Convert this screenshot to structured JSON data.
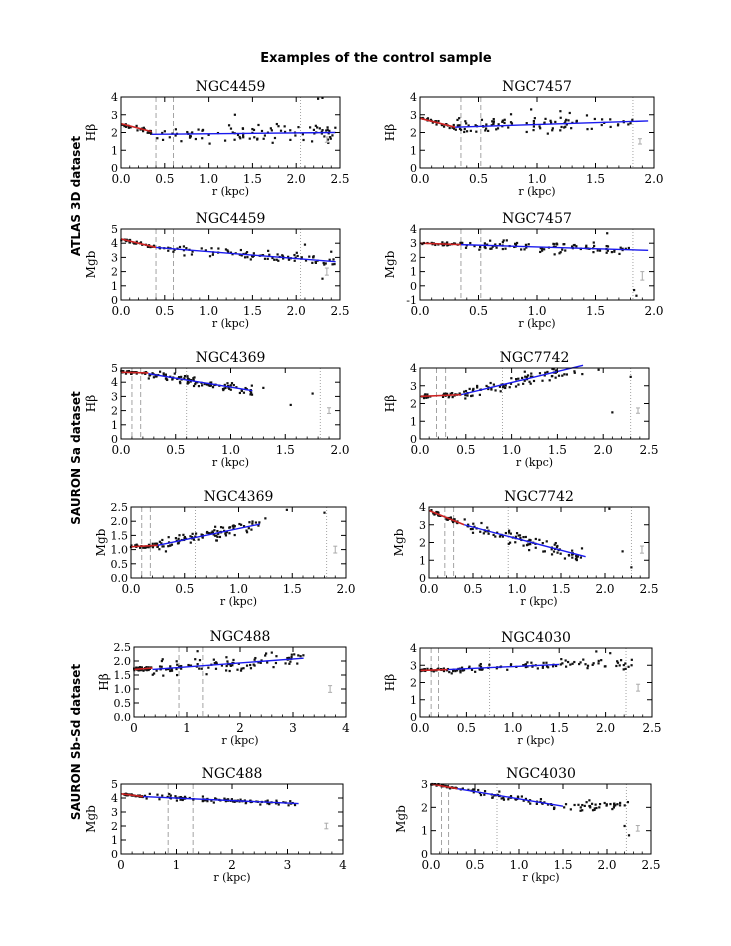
{
  "figure": {
    "title": "Examples of the control sample",
    "group_labels": [
      "ATLAS 3D dataset",
      "SAURON Sa dataset",
      "SAURON Sb-Sd dataset"
    ]
  },
  "colors": {
    "inner_fit": "#cc2222",
    "outer_fit": "#1a1aee",
    "points": "#111111",
    "error_bar": "#aaaaaa",
    "marker_line": "#999999"
  },
  "chart_data": [
    {
      "type": "scatter",
      "title": "NGC4459",
      "ylabel": "Hβ",
      "xlabel": "r (kpc)",
      "xlim": [
        0,
        2.5
      ],
      "ylim": [
        0,
        4
      ],
      "xticks": [
        "0.0",
        "0.5",
        "1.0",
        "1.5",
        "2.0",
        "2.5"
      ],
      "yticks": [
        "0",
        "1",
        "2",
        "3",
        "4"
      ],
      "dashed_x": [
        0.4,
        0.6
      ],
      "dotted_x": [
        2.05
      ],
      "inner_fit": [
        [
          0,
          2.5
        ],
        [
          0.35,
          2.05
        ]
      ],
      "outer_fit": [
        [
          0.35,
          1.9
        ],
        [
          2.45,
          2.0
        ]
      ],
      "outer_end": 2.45,
      "scatter_sd": 0.35,
      "errorbar": {
        "x": 2.35,
        "y": 1.6,
        "half": 0.15
      },
      "outliers": [
        [
          2.25,
          3.9
        ],
        [
          2.3,
          3.95
        ],
        [
          1.3,
          3.0
        ]
      ]
    },
    {
      "type": "scatter",
      "title": "NGC7457",
      "ylabel": "Hβ",
      "xlabel": "r (kpc)",
      "xlim": [
        0,
        2.0
      ],
      "ylim": [
        0,
        4
      ],
      "xticks": [
        "0.0",
        "0.5",
        "1.0",
        "1.5",
        "2.0"
      ],
      "yticks": [
        "0",
        "1",
        "2",
        "3",
        "4"
      ],
      "dashed_x": [
        0.35,
        0.52
      ],
      "dotted_x": [
        1.82
      ],
      "inner_fit": [
        [
          0,
          2.8
        ],
        [
          0.3,
          2.3
        ]
      ],
      "outer_fit": [
        [
          0.3,
          2.3
        ],
        [
          1.95,
          2.65
        ]
      ],
      "outer_end": 1.82,
      "scatter_sd": 0.35,
      "errorbar": {
        "x": 1.88,
        "y": 1.5,
        "half": 0.15
      },
      "outliers": [
        [
          1.2,
          3.2
        ],
        [
          1.28,
          3.1
        ],
        [
          0.95,
          3.3
        ]
      ]
    },
    {
      "type": "scatter",
      "title": "NGC4459",
      "ylabel": "Mgb",
      "xlabel": "r (kpc)",
      "xlim": [
        0,
        2.5
      ],
      "ylim": [
        0,
        5
      ],
      "xticks": [
        "0.0",
        "0.5",
        "1.0",
        "1.5",
        "2.0",
        "2.5"
      ],
      "yticks": [
        "0",
        "1",
        "2",
        "3",
        "4",
        "5"
      ],
      "dashed_x": [
        0.4,
        0.6
      ],
      "dotted_x": [
        2.05
      ],
      "inner_fit": [
        [
          0,
          4.3
        ],
        [
          0.4,
          3.7
        ]
      ],
      "outer_fit": [
        [
          0.4,
          3.7
        ],
        [
          2.45,
          2.7
        ]
      ],
      "outer_end": 2.45,
      "scatter_sd": 0.25,
      "errorbar": {
        "x": 2.35,
        "y": 2.0,
        "half": 0.25
      },
      "outliers": [
        [
          2.3,
          1.5
        ],
        [
          2.1,
          3.9
        ],
        [
          2.4,
          3.4
        ]
      ]
    },
    {
      "type": "scatter",
      "title": "NGC7457",
      "ylabel": "Mgb",
      "xlabel": "r (kpc)",
      "xlim": [
        0,
        2.0
      ],
      "ylim": [
        -1,
        4
      ],
      "xticks": [
        "0.0",
        "0.5",
        "1.0",
        "1.5",
        "2.0"
      ],
      "yticks": [
        "-1",
        "0",
        "1",
        "2",
        "3",
        "4"
      ],
      "dashed_x": [
        0.35,
        0.52
      ],
      "dotted_x": [
        1.82
      ],
      "inner_fit": [
        [
          0,
          3.0
        ],
        [
          0.35,
          2.9
        ]
      ],
      "outer_fit": [
        [
          0.35,
          2.9
        ],
        [
          1.95,
          2.5
        ]
      ],
      "outer_end": 1.82,
      "scatter_sd": 0.3,
      "errorbar": {
        "x": 1.9,
        "y": 0.7,
        "half": 0.3
      },
      "outliers": [
        [
          1.85,
          -0.7
        ],
        [
          1.83,
          -0.3
        ],
        [
          1.6,
          3.7
        ]
      ]
    },
    {
      "type": "scatter",
      "title": "NGC4369",
      "ylabel": "Hβ",
      "xlabel": "r (kpc)",
      "xlim": [
        0,
        2.0
      ],
      "ylim": [
        0,
        5
      ],
      "xticks": [
        "0.0",
        "0.5",
        "1.0",
        "1.5",
        "2.0"
      ],
      "yticks": [
        "0",
        "1",
        "2",
        "3",
        "4",
        "5"
      ],
      "dashed_x": [
        0.1,
        0.18
      ],
      "dotted_x": [
        0.6,
        1.82
      ],
      "inner_fit": [
        [
          0,
          4.7
        ],
        [
          0.25,
          4.65
        ]
      ],
      "outer_fit": [
        [
          0.25,
          4.6
        ],
        [
          1.2,
          3.4
        ]
      ],
      "outer_end": 1.2,
      "scatter_sd": 0.25,
      "errorbar": {
        "x": 1.9,
        "y": 2.0,
        "half": 0.2
      },
      "outliers": [
        [
          1.3,
          3.6
        ],
        [
          1.55,
          2.4
        ],
        [
          1.75,
          3.2
        ]
      ]
    },
    {
      "type": "scatter",
      "title": "NGC7742",
      "ylabel": "Hβ",
      "xlabel": "r (kpc)",
      "xlim": [
        0,
        2.5
      ],
      "ylim": [
        0,
        4
      ],
      "xticks": [
        "0.0",
        "0.5",
        "1.0",
        "1.5",
        "2.0",
        "2.5"
      ],
      "yticks": [
        "0",
        "1",
        "2",
        "3",
        "4"
      ],
      "dashed_x": [
        0.18,
        0.28
      ],
      "dotted_x": [
        0.9,
        2.3
      ],
      "inner_fit": [
        [
          0,
          2.4
        ],
        [
          0.45,
          2.5
        ]
      ],
      "outer_fit": [
        [
          0.45,
          2.5
        ],
        [
          1.78,
          4.15
        ]
      ],
      "outer_end": 1.78,
      "scatter_sd": 0.3,
      "errorbar": {
        "x": 2.38,
        "y": 1.6,
        "half": 0.15
      },
      "outliers": [
        [
          2.1,
          1.5
        ],
        [
          2.3,
          3.5
        ],
        [
          1.95,
          3.9
        ]
      ]
    },
    {
      "type": "scatter",
      "title": "NGC4369",
      "ylabel": "Mgb",
      "xlabel": "r (kpc)",
      "xlim": [
        0,
        2.0
      ],
      "ylim": [
        0,
        2.5
      ],
      "xticks": [
        "0.0",
        "0.5",
        "1.0",
        "1.5",
        "2.0"
      ],
      "yticks": [
        "0.0",
        "0.5",
        "1.0",
        "1.5",
        "2.0",
        "2.5"
      ],
      "dashed_x": [
        0.1,
        0.18
      ],
      "dotted_x": [
        0.6,
        1.82
      ],
      "inner_fit": [
        [
          0,
          1.1
        ],
        [
          0.25,
          1.15
        ]
      ],
      "outer_fit": [
        [
          0.25,
          1.15
        ],
        [
          1.2,
          1.9
        ]
      ],
      "outer_end": 1.2,
      "scatter_sd": 0.18,
      "errorbar": {
        "x": 1.9,
        "y": 1.0,
        "half": 0.12
      },
      "outliers": [
        [
          1.45,
          2.4
        ],
        [
          1.8,
          2.3
        ],
        [
          1.25,
          2.1
        ]
      ]
    },
    {
      "type": "scatter",
      "title": "NGC7742",
      "ylabel": "Mgb",
      "xlabel": "r (kpc)",
      "xlim": [
        0,
        2.5
      ],
      "ylim": [
        0,
        4
      ],
      "xticks": [
        "0.0",
        "0.5",
        "1.0",
        "1.5",
        "2.0",
        "2.5"
      ],
      "yticks": [
        "0",
        "1",
        "2",
        "3",
        "4"
      ],
      "dashed_x": [
        0.18,
        0.28
      ],
      "dotted_x": [
        0.9,
        2.3
      ],
      "inner_fit": [
        [
          0,
          3.8
        ],
        [
          0.4,
          3.0
        ]
      ],
      "outer_fit": [
        [
          0.4,
          3.0
        ],
        [
          1.78,
          1.2
        ]
      ],
      "outer_end": 1.78,
      "scatter_sd": 0.3,
      "errorbar": {
        "x": 2.42,
        "y": 1.6,
        "half": 0.2
      },
      "outliers": [
        [
          2.05,
          3.9
        ],
        [
          2.3,
          0.6
        ],
        [
          2.2,
          1.5
        ]
      ]
    },
    {
      "type": "scatter",
      "title": "NGC488",
      "ylabel": "Hβ",
      "xlabel": "r (kpc)",
      "xlim": [
        0,
        4
      ],
      "ylim": [
        0,
        2.5
      ],
      "xticks": [
        "0",
        "1",
        "2",
        "3",
        "4"
      ],
      "yticks": [
        "0.0",
        "0.5",
        "1.0",
        "1.5",
        "2.0",
        "2.5"
      ],
      "dashed_x": [
        0.85,
        1.3
      ],
      "dotted_x": [],
      "inner_fit": [
        [
          0,
          1.7
        ],
        [
          0.35,
          1.75
        ]
      ],
      "outer_fit": [
        [
          0.35,
          1.7
        ],
        [
          3.2,
          2.1
        ]
      ],
      "outer_end": 3.2,
      "scatter_sd": 0.2,
      "errorbar": {
        "x": 3.7,
        "y": 1.0,
        "half": 0.12
      },
      "outliers": [
        [
          1.2,
          2.35
        ],
        [
          2.6,
          2.3
        ],
        [
          3.1,
          2.2
        ]
      ]
    },
    {
      "type": "scatter",
      "title": "NGC4030",
      "ylabel": "Hβ",
      "xlabel": "r (kpc)",
      "xlim": [
        0,
        2.5
      ],
      "ylim": [
        0,
        4
      ],
      "xticks": [
        "0.0",
        "0.5",
        "1.0",
        "1.5",
        "2.0",
        "2.5"
      ],
      "yticks": [
        "0",
        "1",
        "2",
        "3",
        "4"
      ],
      "dashed_x": [
        0.12,
        0.2
      ],
      "dotted_x": [
        0.75,
        2.22
      ],
      "inner_fit": [
        [
          0,
          2.7
        ],
        [
          0.3,
          2.75
        ]
      ],
      "outer_fit": [
        [
          0.3,
          2.75
        ],
        [
          1.5,
          3.05
        ]
      ],
      "outer_end": 2.3,
      "scatter_sd": 0.2,
      "errorbar": {
        "x": 2.35,
        "y": 1.7,
        "half": 0.2
      },
      "outliers": [
        [
          2.05,
          3.7
        ],
        [
          2.28,
          3.0
        ],
        [
          1.9,
          3.8
        ]
      ]
    },
    {
      "type": "scatter",
      "title": "NGC488",
      "ylabel": "Mgb",
      "xlabel": "r (kpc)",
      "xlim": [
        0,
        4
      ],
      "ylim": [
        0,
        5
      ],
      "xticks": [
        "0",
        "1",
        "2",
        "3",
        "4"
      ],
      "yticks": [
        "0",
        "1",
        "2",
        "3",
        "4",
        "5"
      ],
      "dashed_x": [
        0.85,
        1.3
      ],
      "dotted_x": [],
      "inner_fit": [
        [
          0,
          4.3
        ],
        [
          0.4,
          4.1
        ]
      ],
      "outer_fit": [
        [
          0.4,
          4.1
        ],
        [
          3.2,
          3.6
        ]
      ],
      "outer_end": 3.2,
      "scatter_sd": 0.15,
      "errorbar": {
        "x": 3.7,
        "y": 2.0,
        "half": 0.2
      },
      "outliers": []
    },
    {
      "type": "scatter",
      "title": "NGC4030",
      "ylabel": "Mgb",
      "xlabel": "r (kpc)",
      "xlim": [
        0,
        2.5
      ],
      "ylim": [
        0,
        3
      ],
      "xticks": [
        "0.0",
        "0.5",
        "1.0",
        "1.5",
        "2.0",
        "2.5"
      ],
      "yticks": [
        "0",
        "1",
        "2",
        "3"
      ],
      "dashed_x": [
        0.12,
        0.2
      ],
      "dotted_x": [
        0.75,
        2.22
      ],
      "inner_fit": [
        [
          0,
          3.0
        ],
        [
          0.3,
          2.8
        ]
      ],
      "outer_fit": [
        [
          0.3,
          2.8
        ],
        [
          1.5,
          2.05
        ]
      ],
      "outer_end": 2.3,
      "scatter_sd": 0.15,
      "errorbar": {
        "x": 2.35,
        "y": 1.1,
        "half": 0.12
      },
      "outliers": [
        [
          2.25,
          0.8
        ],
        [
          2.2,
          1.2
        ],
        [
          1.8,
          2.3
        ]
      ]
    }
  ]
}
